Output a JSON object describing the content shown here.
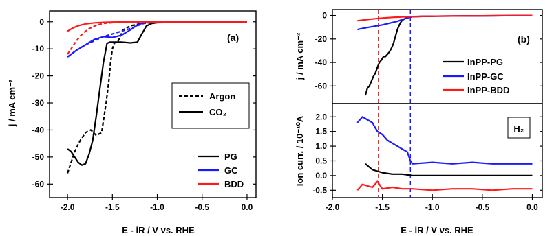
{
  "chart_data": [
    {
      "panel": "(a)",
      "type": "line",
      "xlabel": "E - iR / V vs. RHE",
      "ylabel": "j / mA cm⁻²",
      "xlim": [
        -2.2,
        0.1
      ],
      "ylim": [
        -65,
        4
      ],
      "xticks": [
        -2.0,
        -1.5,
        -1.0,
        -0.5,
        0.0
      ],
      "xtick_labels": [
        "-2.0",
        "-1.5",
        "-1.0",
        "-0.5",
        "0.0"
      ],
      "yticks": [
        0,
        -10,
        -20,
        -30,
        -40,
        -50,
        -60
      ],
      "ytick_labels": [
        "0",
        "-10",
        "-20",
        "-30",
        "-40",
        "-50",
        "-60"
      ],
      "linestyle_legend": [
        {
          "name": "Argon",
          "style": "dashed"
        },
        {
          "name": "CO₂",
          "style": "solid"
        }
      ],
      "color_legend": [
        {
          "name": "PG",
          "color": "#000000"
        },
        {
          "name": "GC",
          "color": "#1a1aff"
        },
        {
          "name": "BDD",
          "color": "#ff1a1a"
        }
      ],
      "series": [
        {
          "name": "PG",
          "condition": "Argon",
          "style": "dashed",
          "color": "#000000",
          "x": [
            -2.0,
            -1.97,
            -1.92,
            -1.86,
            -1.8,
            -1.74,
            -1.68,
            -1.62,
            -1.57,
            -1.54,
            -1.52,
            -1.5,
            -1.48,
            -1.46,
            -1.44,
            -1.42,
            -1.38,
            -1.3,
            -1.2,
            -1.1,
            -1.0,
            -0.5,
            0.0
          ],
          "y": [
            -56,
            -53,
            -48,
            -44,
            -41,
            -40,
            -42,
            -41,
            -30,
            -22,
            -15,
            -10,
            -8,
            -7.5,
            -7.5,
            -6,
            -3,
            -1.5,
            -0.8,
            -0.4,
            -0.2,
            -0.1,
            0
          ]
        },
        {
          "name": "PG",
          "condition": "CO2",
          "style": "solid",
          "color": "#000000",
          "x": [
            -2.0,
            -1.96,
            -1.92,
            -1.88,
            -1.84,
            -1.8,
            -1.76,
            -1.72,
            -1.68,
            -1.64,
            -1.6,
            -1.56,
            -1.53,
            -1.5,
            -1.48,
            -1.4,
            -1.3,
            -1.22,
            -1.18,
            -1.12,
            -1.06,
            -1.0,
            -0.5,
            0.0
          ],
          "y": [
            -47,
            -48,
            -50,
            -52,
            -53,
            -52.5,
            -49,
            -44,
            -35,
            -25,
            -15,
            -8,
            -7.5,
            -7.5,
            -7.5,
            -7.5,
            -7.8,
            -7.5,
            -5,
            -1.5,
            -0.6,
            -0.3,
            -0.1,
            0
          ]
        },
        {
          "name": "GC",
          "condition": "Argon",
          "style": "dashed",
          "color": "#1a1aff",
          "x": [
            -2.0,
            -1.9,
            -1.8,
            -1.7,
            -1.6,
            -1.5,
            -1.4,
            -1.3,
            -1.2,
            -1.15,
            -1.1,
            -1.0,
            -0.5,
            0.0
          ],
          "y": [
            -13,
            -10.5,
            -8.5,
            -7,
            -5.5,
            -4.5,
            -3.5,
            -2.5,
            -1.2,
            -0.6,
            -0.3,
            -0.1,
            0,
            0
          ]
        },
        {
          "name": "GC",
          "condition": "CO2",
          "style": "solid",
          "color": "#1a1aff",
          "x": [
            -2.0,
            -1.9,
            -1.8,
            -1.7,
            -1.6,
            -1.5,
            -1.4,
            -1.3,
            -1.25,
            -1.2,
            -1.15,
            -1.1,
            -1.0,
            -0.5,
            0.0
          ],
          "y": [
            -13,
            -10.5,
            -8.5,
            -6.5,
            -5.5,
            -5.8,
            -5,
            -3,
            -1.8,
            -0.9,
            -0.4,
            -0.2,
            -0.1,
            0,
            0
          ]
        },
        {
          "name": "BDD",
          "condition": "Argon",
          "style": "dashed",
          "color": "#ff1a1a",
          "x": [
            -2.0,
            -1.95,
            -1.9,
            -1.85,
            -1.8,
            -1.75,
            -1.7,
            -1.65,
            -1.6,
            -1.5,
            -1.4,
            -1.0,
            0.0
          ],
          "y": [
            -12,
            -9.5,
            -7,
            -5,
            -3.5,
            -2.4,
            -1.6,
            -1,
            -0.6,
            -0.3,
            -0.1,
            0,
            0
          ]
        },
        {
          "name": "BDD",
          "condition": "CO2",
          "style": "solid",
          "color": "#ff1a1a",
          "x": [
            -2.0,
            -1.95,
            -1.9,
            -1.85,
            -1.8,
            -1.7,
            -1.6,
            -1.5,
            -1.3,
            -1.0,
            0.0
          ],
          "y": [
            -3.5,
            -2.5,
            -1.7,
            -1.2,
            -0.8,
            -0.4,
            -0.2,
            -0.1,
            0,
            0,
            0
          ]
        }
      ]
    },
    {
      "panel": "(b)",
      "type": "line",
      "xlabel": "E - iR / V vs. RHE",
      "ylabel": "j / mA cm⁻²",
      "xlim": [
        -2.0,
        0.1
      ],
      "ylim": [
        -75,
        5
      ],
      "xticks": [
        -2.0,
        -1.5,
        -1.0,
        -0.5,
        0.0
      ],
      "xtick_labels": [
        "-2.0",
        "-1.5",
        "-1.0",
        "-0.5",
        "0.0"
      ],
      "yticks": [
        0,
        -20,
        -40,
        -60
      ],
      "ytick_labels": [
        "0",
        "-20",
        "-40",
        "-60"
      ],
      "legend": [
        {
          "name": "InPP-PG",
          "color": "#000000"
        },
        {
          "name": "InPP-GC",
          "color": "#1a1aff"
        },
        {
          "name": "InPP-BDD",
          "color": "#ff1a1a"
        }
      ],
      "vlines": [
        {
          "x": -1.54,
          "color": "#ff1a1a",
          "style": "dashed"
        },
        {
          "x": -1.22,
          "color": "#1a1aff",
          "style": "dashed"
        }
      ],
      "series": [
        {
          "name": "InPP-PG",
          "color": "#000000",
          "x": [
            -1.67,
            -1.65,
            -1.63,
            -1.61,
            -1.59,
            -1.57,
            -1.55,
            -1.53,
            -1.51,
            -1.49,
            -1.47,
            -1.45,
            -1.43,
            -1.41,
            -1.39,
            -1.37,
            -1.35,
            -1.33,
            -1.31,
            -1.29,
            -1.27,
            -1.25,
            -1.22,
            -1.2,
            -1.1,
            -1.0,
            -0.5,
            0.0
          ],
          "y": [
            -68,
            -62,
            -60,
            -56,
            -52,
            -49,
            -44,
            -40,
            -38,
            -35,
            -35,
            -33,
            -31,
            -28,
            -24,
            -18,
            -12,
            -8,
            -5,
            -3.5,
            -2.5,
            -2,
            -1.2,
            -1,
            -0.8,
            -0.6,
            -0.3,
            0
          ]
        },
        {
          "name": "InPP-GC",
          "color": "#1a1aff",
          "x": [
            -1.75,
            -1.7,
            -1.6,
            -1.5,
            -1.4,
            -1.35,
            -1.3,
            -1.25,
            -1.22,
            -1.2,
            -1.1,
            -1.0,
            -0.5,
            0.0
          ],
          "y": [
            -12,
            -11,
            -9.5,
            -8,
            -6,
            -5,
            -3.5,
            -2,
            -1.5,
            -1,
            -0.8,
            -0.6,
            -0.3,
            0
          ]
        },
        {
          "name": "InPP-BDD",
          "color": "#ff1a1a",
          "x": [
            -1.75,
            -1.7,
            -1.6,
            -1.5,
            -1.4,
            -1.3,
            -1.2,
            -1.0,
            -0.5,
            0.0
          ],
          "y": [
            -4.5,
            -4,
            -3,
            -2.2,
            -1.6,
            -1.2,
            -0.9,
            -0.6,
            -0.3,
            0
          ]
        }
      ]
    },
    {
      "panel": "(b) lower",
      "type": "line",
      "xlabel": "E - iR / V vs. RHE",
      "ylabel": "Ion curr. / 10⁻¹⁰A",
      "annotation": "H₂",
      "xlim": [
        -2.0,
        0.1
      ],
      "ylim": [
        -0.75,
        2.45
      ],
      "xticks": [
        -2.0,
        -1.5,
        -1.0,
        -0.5,
        0.0
      ],
      "xtick_labels": [
        "-2.0",
        "-1.5",
        "-1.0",
        "-0.5",
        "0.0"
      ],
      "yticks": [
        2.0,
        1.5,
        1.0,
        0.5,
        0.0,
        -0.5
      ],
      "ytick_labels": [
        "2.0",
        "1.5",
        "1.0",
        "0.5",
        "0.0",
        "-0.5"
      ],
      "series": [
        {
          "name": "InPP-GC",
          "color": "#1a1aff",
          "x": [
            -1.75,
            -1.7,
            -1.65,
            -1.6,
            -1.55,
            -1.5,
            -1.45,
            -1.4,
            -1.35,
            -1.3,
            -1.25,
            -1.22,
            -1.2,
            -1.0,
            -0.8,
            -0.6,
            -0.4,
            -0.2,
            0.0
          ],
          "y": [
            1.8,
            2.0,
            1.9,
            1.8,
            1.5,
            1.4,
            1.2,
            1.1,
            1.0,
            0.9,
            0.8,
            0.5,
            0.4,
            0.45,
            0.4,
            0.45,
            0.4,
            0.4,
            0.4
          ]
        },
        {
          "name": "InPP-PG",
          "color": "#000000",
          "x": [
            -1.67,
            -1.6,
            -1.55,
            -1.5,
            -1.4,
            -1.3,
            -1.2,
            -1.0,
            -0.8,
            -0.6,
            -0.4,
            -0.2,
            0.0
          ],
          "y": [
            0.4,
            0.2,
            0.15,
            0.1,
            0.05,
            0.05,
            0.0,
            0.0,
            0.0,
            0.0,
            0.0,
            0.0,
            0.0
          ]
        },
        {
          "name": "InPP-BDD",
          "color": "#ff1a1a",
          "x": [
            -1.75,
            -1.7,
            -1.6,
            -1.55,
            -1.5,
            -1.4,
            -1.3,
            -1.2,
            -1.0,
            -0.8,
            -0.6,
            -0.4,
            -0.2,
            0.0
          ],
          "y": [
            -0.5,
            -0.3,
            -0.4,
            -0.2,
            -0.45,
            -0.4,
            -0.45,
            -0.45,
            -0.5,
            -0.45,
            -0.45,
            -0.5,
            -0.45,
            -0.45
          ]
        }
      ]
    }
  ]
}
